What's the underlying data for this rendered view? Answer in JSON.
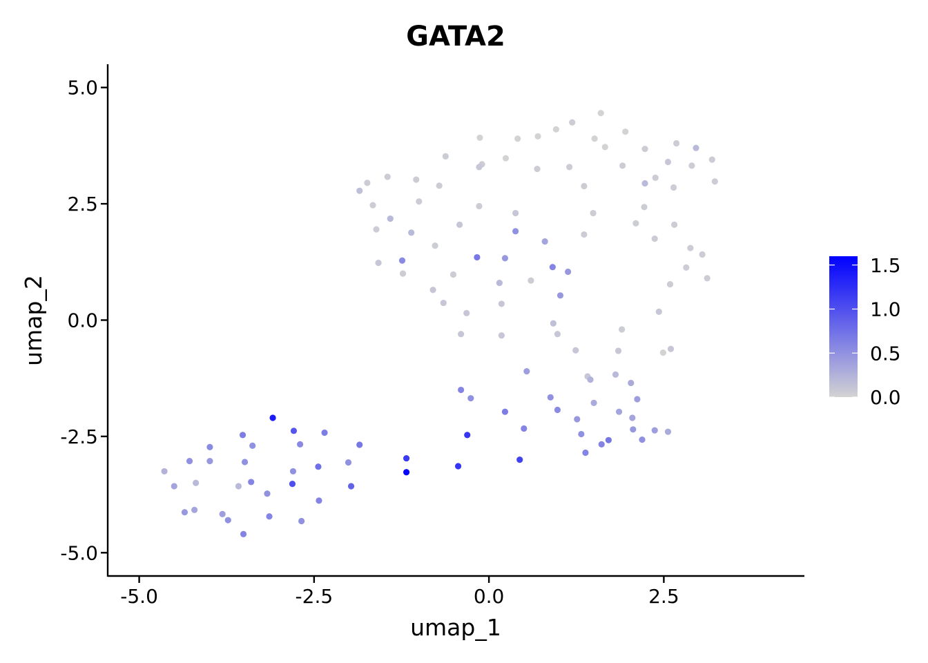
{
  "chart_data": {
    "type": "scatter",
    "title": "GATA2",
    "xlabel": "umap_1",
    "ylabel": "umap_2",
    "xlim": [
      -5.45,
      4.5
    ],
    "ylim": [
      -5.5,
      5.5
    ],
    "xticks": [
      -5.0,
      -2.5,
      0.0,
      2.5
    ],
    "xtick_labels": [
      "-5.0",
      "-2.5",
      "0.0",
      "2.5"
    ],
    "yticks": [
      -5.0,
      -2.5,
      0.0,
      2.5,
      5.0
    ],
    "ytick_labels": [
      "-5.0",
      "-2.5",
      "0.0",
      "2.5",
      "5.0"
    ],
    "grid": false,
    "legend": {
      "placement": "right",
      "type": "colorbar",
      "range": [
        0.0,
        1.6
      ],
      "ticks": [
        0.0,
        0.5,
        1.0,
        1.5
      ],
      "tick_labels": [
        "0.0",
        "0.5",
        "1.0",
        "1.5"
      ],
      "color_low": "#d3d3d3",
      "color_high": "#0000ff"
    },
    "points": [
      {
        "x": 1.6,
        "y": 4.45,
        "v": 0.0
      },
      {
        "x": 1.19,
        "y": 4.25,
        "v": 0.05
      },
      {
        "x": 0.96,
        "y": 4.1,
        "v": 0.0
      },
      {
        "x": 1.95,
        "y": 4.05,
        "v": 0.0
      },
      {
        "x": 0.7,
        "y": 3.95,
        "v": 0.0
      },
      {
        "x": 1.51,
        "y": 3.9,
        "v": 0.0
      },
      {
        "x": 0.41,
        "y": 3.9,
        "v": 0.0
      },
      {
        "x": -0.13,
        "y": 3.92,
        "v": 0.0
      },
      {
        "x": 2.68,
        "y": 3.8,
        "v": 0.05
      },
      {
        "x": 1.66,
        "y": 3.72,
        "v": 0.0
      },
      {
        "x": 2.96,
        "y": 3.7,
        "v": 0.2
      },
      {
        "x": 2.23,
        "y": 3.68,
        "v": 0.05
      },
      {
        "x": -0.62,
        "y": 3.52,
        "v": 0.05
      },
      {
        "x": 0.24,
        "y": 3.48,
        "v": 0.0
      },
      {
        "x": 3.19,
        "y": 3.45,
        "v": 0.05
      },
      {
        "x": 2.56,
        "y": 3.4,
        "v": 0.1
      },
      {
        "x": -0.1,
        "y": 3.35,
        "v": 0.05
      },
      {
        "x": 1.91,
        "y": 3.32,
        "v": 0.05
      },
      {
        "x": 2.9,
        "y": 3.32,
        "v": 0.05
      },
      {
        "x": -0.14,
        "y": 3.29,
        "v": 0.1
      },
      {
        "x": 1.15,
        "y": 3.29,
        "v": 0.05
      },
      {
        "x": 0.69,
        "y": 3.25,
        "v": 0.05
      },
      {
        "x": -1.45,
        "y": 3.08,
        "v": 0.05
      },
      {
        "x": 2.38,
        "y": 3.06,
        "v": 0.05
      },
      {
        "x": -1.04,
        "y": 3.02,
        "v": 0.05
      },
      {
        "x": 3.23,
        "y": 2.98,
        "v": 0.05
      },
      {
        "x": -1.74,
        "y": 2.95,
        "v": 0.05
      },
      {
        "x": 2.23,
        "y": 2.94,
        "v": 0.2
      },
      {
        "x": -0.71,
        "y": 2.89,
        "v": 0.05
      },
      {
        "x": 1.36,
        "y": 2.88,
        "v": 0.05
      },
      {
        "x": 2.64,
        "y": 2.85,
        "v": 0.05
      },
      {
        "x": -1.85,
        "y": 2.78,
        "v": 0.15
      },
      {
        "x": -1.0,
        "y": 2.55,
        "v": 0.05
      },
      {
        "x": -1.66,
        "y": 2.47,
        "v": 0.05
      },
      {
        "x": -0.14,
        "y": 2.45,
        "v": 0.05
      },
      {
        "x": 2.22,
        "y": 2.43,
        "v": 0.05
      },
      {
        "x": 0.38,
        "y": 2.3,
        "v": 0.1
      },
      {
        "x": 1.49,
        "y": 2.3,
        "v": 0.05
      },
      {
        "x": -1.41,
        "y": 2.18,
        "v": 0.2
      },
      {
        "x": 2.1,
        "y": 2.08,
        "v": 0.05
      },
      {
        "x": -0.42,
        "y": 2.05,
        "v": 0.1
      },
      {
        "x": 2.65,
        "y": 2.05,
        "v": 0.05
      },
      {
        "x": -1.61,
        "y": 1.95,
        "v": 0.05
      },
      {
        "x": 0.38,
        "y": 1.91,
        "v": 0.5
      },
      {
        "x": -1.11,
        "y": 1.88,
        "v": 0.2
      },
      {
        "x": 1.36,
        "y": 1.84,
        "v": 0.05
      },
      {
        "x": 2.37,
        "y": 1.75,
        "v": 0.05
      },
      {
        "x": 0.8,
        "y": 1.69,
        "v": 0.35
      },
      {
        "x": -0.77,
        "y": 1.6,
        "v": 0.05
      },
      {
        "x": 2.88,
        "y": 1.55,
        "v": 0.05
      },
      {
        "x": 3.05,
        "y": 1.41,
        "v": 0.05
      },
      {
        "x": -0.17,
        "y": 1.35,
        "v": 0.7
      },
      {
        "x": 0.23,
        "y": 1.33,
        "v": 0.45
      },
      {
        "x": -1.24,
        "y": 1.28,
        "v": 0.55
      },
      {
        "x": -1.58,
        "y": 1.23,
        "v": 0.1
      },
      {
        "x": 0.91,
        "y": 1.14,
        "v": 0.6
      },
      {
        "x": 2.82,
        "y": 1.13,
        "v": 0.05
      },
      {
        "x": 1.13,
        "y": 1.04,
        "v": 0.45
      },
      {
        "x": -1.23,
        "y": 1.0,
        "v": 0.05
      },
      {
        "x": -0.51,
        "y": 0.98,
        "v": 0.05
      },
      {
        "x": 3.12,
        "y": 0.9,
        "v": 0.05
      },
      {
        "x": 0.6,
        "y": 0.85,
        "v": 0.05
      },
      {
        "x": 0.15,
        "y": 0.8,
        "v": 0.2
      },
      {
        "x": 2.59,
        "y": 0.77,
        "v": 0.05
      },
      {
        "x": -0.8,
        "y": 0.65,
        "v": 0.1
      },
      {
        "x": 1.02,
        "y": 0.53,
        "v": 0.45
      },
      {
        "x": -0.65,
        "y": 0.37,
        "v": 0.1
      },
      {
        "x": 0.18,
        "y": 0.35,
        "v": 0.1
      },
      {
        "x": -0.32,
        "y": 0.15,
        "v": 0.1
      },
      {
        "x": 2.43,
        "y": 0.18,
        "v": 0.1
      },
      {
        "x": 0.92,
        "y": -0.07,
        "v": 0.15
      },
      {
        "x": 1.9,
        "y": -0.2,
        "v": 0.05
      },
      {
        "x": -0.4,
        "y": -0.3,
        "v": 0.1
      },
      {
        "x": 0.98,
        "y": -0.3,
        "v": 0.1
      },
      {
        "x": 0.18,
        "y": -0.33,
        "v": 0.1
      },
      {
        "x": 1.24,
        "y": -0.65,
        "v": 0.1
      },
      {
        "x": 1.85,
        "y": -0.66,
        "v": 0.1
      },
      {
        "x": 2.6,
        "y": -0.62,
        "v": 0.1
      },
      {
        "x": 2.49,
        "y": -0.7,
        "v": 0.0
      },
      {
        "x": 0.54,
        "y": -1.1,
        "v": 0.4
      },
      {
        "x": 1.41,
        "y": -1.21,
        "v": 0.1
      },
      {
        "x": 1.81,
        "y": -1.17,
        "v": 0.2
      },
      {
        "x": 1.45,
        "y": -1.28,
        "v": 0.25
      },
      {
        "x": 2.03,
        "y": -1.35,
        "v": 0.3
      },
      {
        "x": -0.4,
        "y": -1.5,
        "v": 0.6
      },
      {
        "x": -0.26,
        "y": -1.68,
        "v": 0.5
      },
      {
        "x": 0.88,
        "y": -1.66,
        "v": 0.5
      },
      {
        "x": 2.12,
        "y": -1.7,
        "v": 0.4
      },
      {
        "x": 1.5,
        "y": -1.78,
        "v": 0.3
      },
      {
        "x": 0.98,
        "y": -1.93,
        "v": 0.55
      },
      {
        "x": 0.23,
        "y": -1.97,
        "v": 0.65
      },
      {
        "x": 1.86,
        "y": -1.97,
        "v": 0.35
      },
      {
        "x": 2.05,
        "y": -2.1,
        "v": 0.35
      },
      {
        "x": 1.26,
        "y": -2.13,
        "v": 0.45
      },
      {
        "x": -3.09,
        "y": -2.1,
        "v": 1.4
      },
      {
        "x": 0.5,
        "y": -2.33,
        "v": 0.6
      },
      {
        "x": 2.06,
        "y": -2.35,
        "v": 0.45
      },
      {
        "x": 2.37,
        "y": -2.37,
        "v": 0.4
      },
      {
        "x": 2.56,
        "y": -2.4,
        "v": 0.3
      },
      {
        "x": -2.79,
        "y": -2.38,
        "v": 0.95
      },
      {
        "x": -2.35,
        "y": -2.42,
        "v": 0.65
      },
      {
        "x": 1.32,
        "y": -2.45,
        "v": 0.5
      },
      {
        "x": -3.52,
        "y": -2.47,
        "v": 0.65
      },
      {
        "x": -0.31,
        "y": -2.47,
        "v": 1.2
      },
      {
        "x": 2.19,
        "y": -2.57,
        "v": 0.5
      },
      {
        "x": 1.71,
        "y": -2.58,
        "v": 0.7
      },
      {
        "x": 1.61,
        "y": -2.67,
        "v": 0.6
      },
      {
        "x": -2.7,
        "y": -2.67,
        "v": 0.55
      },
      {
        "x": -3.38,
        "y": -2.7,
        "v": 0.5
      },
      {
        "x": -3.99,
        "y": -2.73,
        "v": 0.55
      },
      {
        "x": -1.85,
        "y": -2.68,
        "v": 0.7
      },
      {
        "x": 1.38,
        "y": -2.85,
        "v": 0.6
      },
      {
        "x": -1.18,
        "y": -2.97,
        "v": 1.15
      },
      {
        "x": 0.44,
        "y": -3.0,
        "v": 1.1
      },
      {
        "x": -4.28,
        "y": -3.03,
        "v": 0.5
      },
      {
        "x": -3.99,
        "y": -3.03,
        "v": 0.45
      },
      {
        "x": -3.49,
        "y": -3.05,
        "v": 0.5
      },
      {
        "x": -2.01,
        "y": -3.06,
        "v": 0.5
      },
      {
        "x": -2.44,
        "y": -3.15,
        "v": 0.75
      },
      {
        "x": -0.44,
        "y": -3.14,
        "v": 1.2
      },
      {
        "x": -2.8,
        "y": -3.25,
        "v": 0.5
      },
      {
        "x": -1.18,
        "y": -3.27,
        "v": 1.55
      },
      {
        "x": -4.64,
        "y": -3.25,
        "v": 0.25
      },
      {
        "x": -3.4,
        "y": -3.48,
        "v": 0.6
      },
      {
        "x": -4.19,
        "y": -3.5,
        "v": 0.2
      },
      {
        "x": -2.81,
        "y": -3.52,
        "v": 1.0
      },
      {
        "x": -1.97,
        "y": -3.57,
        "v": 0.85
      },
      {
        "x": -4.5,
        "y": -3.57,
        "v": 0.35
      },
      {
        "x": -3.58,
        "y": -3.57,
        "v": 0.2
      },
      {
        "x": -3.17,
        "y": -3.73,
        "v": 0.5
      },
      {
        "x": -2.43,
        "y": -3.88,
        "v": 0.6
      },
      {
        "x": -4.21,
        "y": -4.08,
        "v": 0.35
      },
      {
        "x": -4.35,
        "y": -4.13,
        "v": 0.45
      },
      {
        "x": -3.81,
        "y": -4.17,
        "v": 0.4
      },
      {
        "x": -3.14,
        "y": -4.22,
        "v": 0.6
      },
      {
        "x": -3.73,
        "y": -4.3,
        "v": 0.5
      },
      {
        "x": -2.68,
        "y": -4.32,
        "v": 0.5
      },
      {
        "x": -3.51,
        "y": -4.6,
        "v": 0.6
      }
    ]
  }
}
